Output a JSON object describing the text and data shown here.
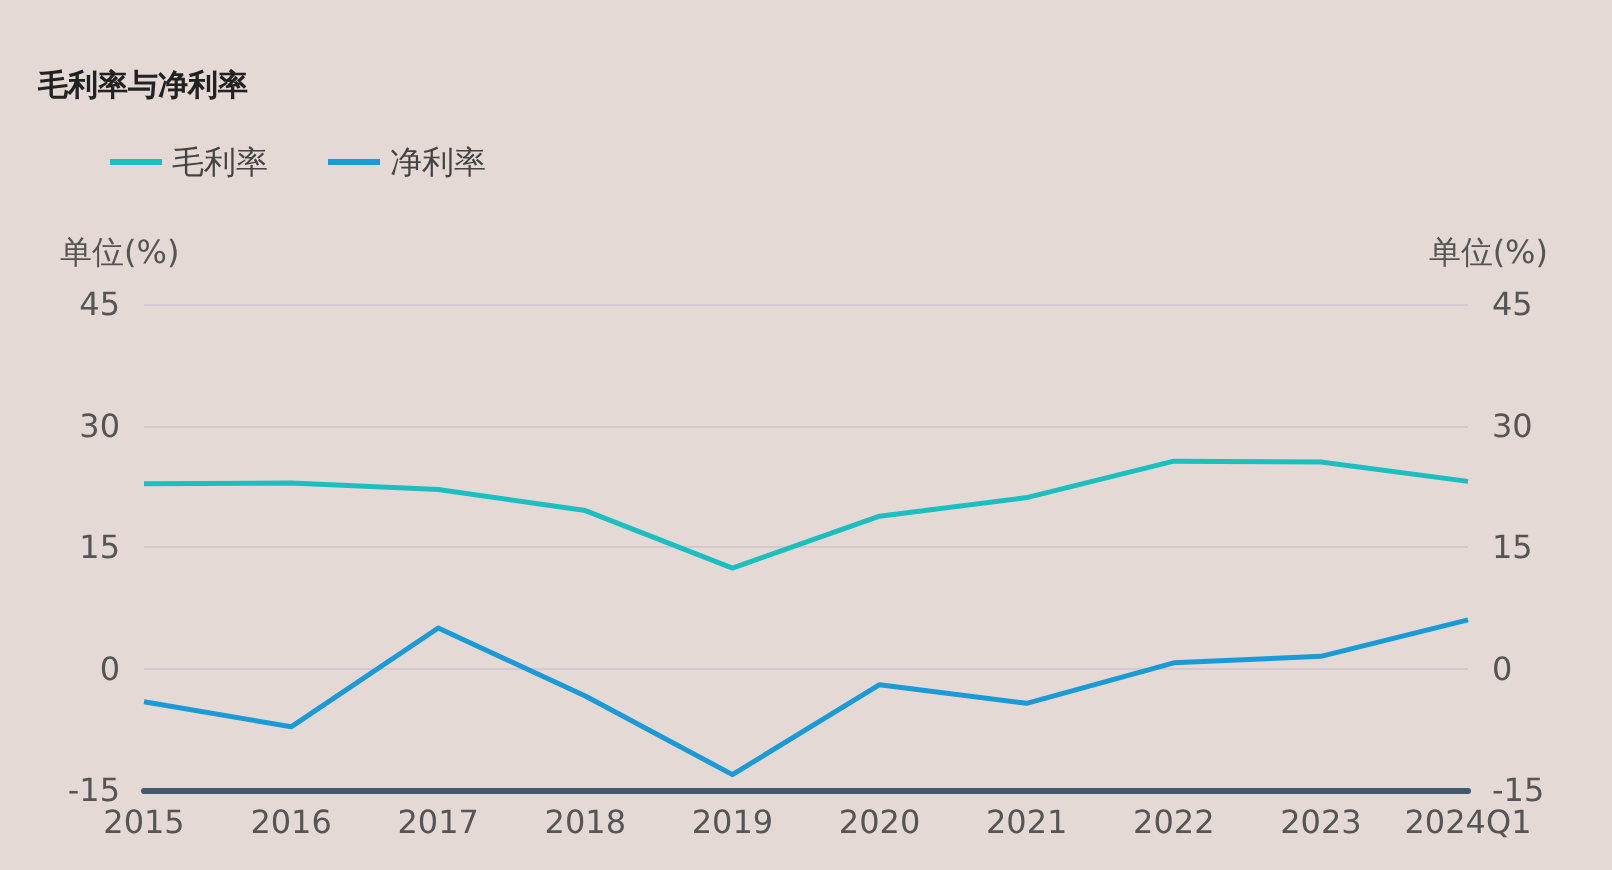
{
  "chart_data": {
    "type": "line",
    "title": "毛利率与净利率",
    "ylabel": "单位(%)",
    "y2label": "单位(%)",
    "categories": [
      "2015",
      "2016",
      "2017",
      "2018",
      "2019",
      "2020",
      "2021",
      "2022",
      "2023",
      "2024Q1"
    ],
    "series": [
      {
        "name": "毛利率",
        "color": "#1bbfc0",
        "values": [
          22.8,
          22.9,
          22.1,
          19.5,
          12.4,
          18.8,
          21.1,
          25.6,
          25.5,
          23.1
        ]
      },
      {
        "name": "净利率",
        "color": "#1a9ad6",
        "values": [
          -4.1,
          -7.2,
          5.0,
          -3.4,
          -13.1,
          -2.0,
          -4.3,
          0.7,
          1.5,
          6.0
        ]
      }
    ],
    "ylim": [
      -15,
      45
    ],
    "yticks": [
      -15,
      0,
      15,
      30,
      45
    ],
    "y2lim": [
      -15,
      45
    ],
    "y2ticks": [
      -15,
      0,
      15,
      30,
      45
    ],
    "grid": "y",
    "legend": "top left",
    "marker": "none",
    "line_style": "solid"
  }
}
